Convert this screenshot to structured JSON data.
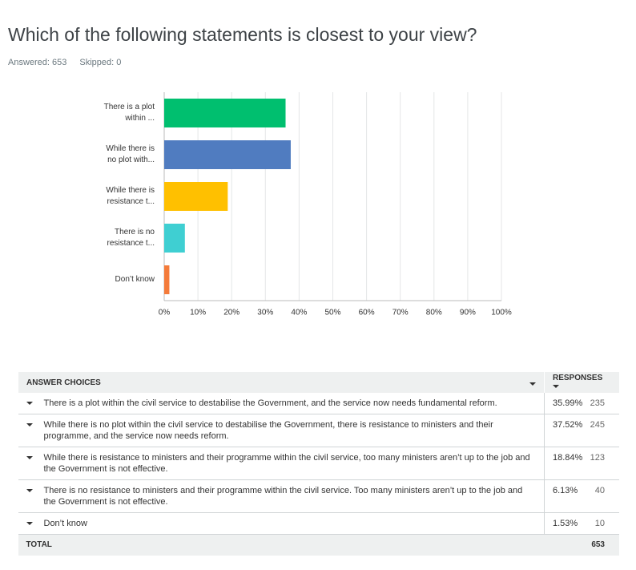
{
  "header": {
    "title": "Which of the following statements is closest to your view?",
    "answered": "Answered: 653",
    "skipped": "Skipped: 0"
  },
  "chart_data": {
    "type": "bar",
    "orientation": "horizontal",
    "categories": [
      "There is a plot within ...",
      "While there is no plot with...",
      "While there is resistance t...",
      "There is no resistance t...",
      "Don’t know"
    ],
    "values": [
      35.99,
      37.52,
      18.84,
      6.13,
      1.53
    ],
    "colors": [
      "#00bf6f",
      "#507cc0",
      "#ffc000",
      "#3fcfd2",
      "#f47b3a"
    ],
    "xlim": [
      0,
      100
    ],
    "xticks": [
      {
        "value": 0,
        "label": "0%"
      },
      {
        "value": 10,
        "label": "10%"
      },
      {
        "value": 20,
        "label": "20%"
      },
      {
        "value": 30,
        "label": "30%"
      },
      {
        "value": 40,
        "label": "40%"
      },
      {
        "value": 50,
        "label": "50%"
      },
      {
        "value": 60,
        "label": "60%"
      },
      {
        "value": 70,
        "label": "70%"
      },
      {
        "value": 80,
        "label": "80%"
      },
      {
        "value": 90,
        "label": "90%"
      },
      {
        "value": 100,
        "label": "100%"
      }
    ],
    "grid": true
  },
  "table": {
    "header": [
      "ANSWER CHOICES",
      "RESPONSES"
    ],
    "rows": [
      [
        "There is a plot within the civil service to destabilise the Government, and the service now needs fundamental reform.",
        "35.99%",
        235
      ],
      [
        "While there is no plot within the civil service to destabilise the Government, there is resistance to ministers and their programme, and the service now needs reform.",
        "37.52%",
        245
      ],
      [
        "While there is resistance to ministers and their programme within the civil service, too many ministers aren’t up to the job and the Government is not effective.",
        "18.84%",
        123
      ],
      [
        "There is no resistance to ministers and their programme within the civil service. Too many ministers aren’t up to the job and the Government is not effective.",
        "6.13%",
        40
      ],
      [
        "Don’t know",
        "1.53%",
        10
      ]
    ],
    "total": [
      "TOTAL",
      653
    ]
  }
}
